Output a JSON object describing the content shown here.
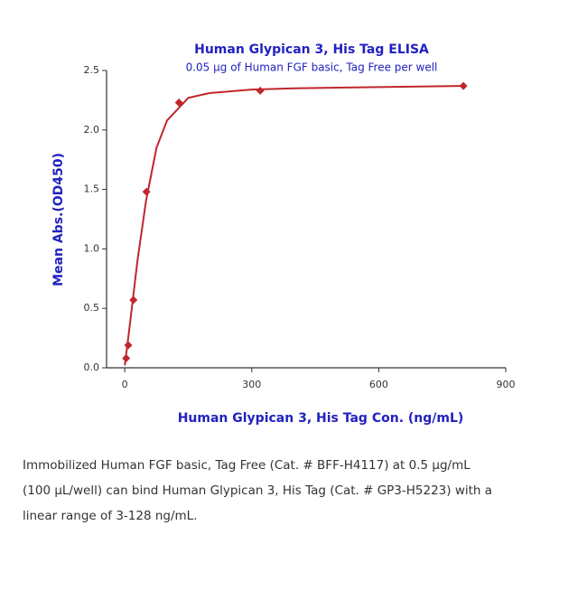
{
  "chart_data": {
    "type": "scatter",
    "title": "Human Glypican 3, His Tag ELISA",
    "subtitle": "0.05 μg of Human FGF basic, Tag Free per well",
    "x_label": "Human Glypican 3, His Tag Con. (ng/mL)",
    "y_label": "Mean Abs.(OD450)",
    "points": {
      "color": "#c0262c",
      "x": [
        3.2768,
        8.192,
        20.48,
        51.2,
        128,
        320,
        800
      ],
      "values": [
        0.08,
        0.19,
        0.57,
        1.48,
        2.23,
        2.33,
        2.37
      ]
    },
    "fit": {
      "color": "#c0262c",
      "x": [
        0,
        10,
        20,
        30,
        50,
        75,
        100,
        150,
        200,
        300,
        400,
        600,
        800
      ],
      "values": [
        0.02,
        0.3,
        0.6,
        0.9,
        1.4,
        1.85,
        2.08,
        2.27,
        2.31,
        2.34,
        2.35,
        2.36,
        2.37
      ]
    },
    "xlim": [
      -43,
      900
    ],
    "ylim": [
      0,
      2.5
    ],
    "xticks": [
      0,
      300,
      600,
      900
    ],
    "yticks": [
      {
        "value": 0,
        "label": "0.0"
      },
      0.5,
      {
        "value": 1,
        "label": "1.0"
      },
      1.5,
      {
        "value": 2,
        "label": "2.0"
      },
      2.5
    ]
  },
  "caption": [
    "Immobilized Human FGF basic, Tag Free (Cat. # BFF-H4117) at 0.5 μg/mL",
    "(100 μL/well) can bind Human Glypican 3, His Tag (Cat. # GP3-H5223) with a",
    "linear range of 3-128 ng/mL."
  ]
}
